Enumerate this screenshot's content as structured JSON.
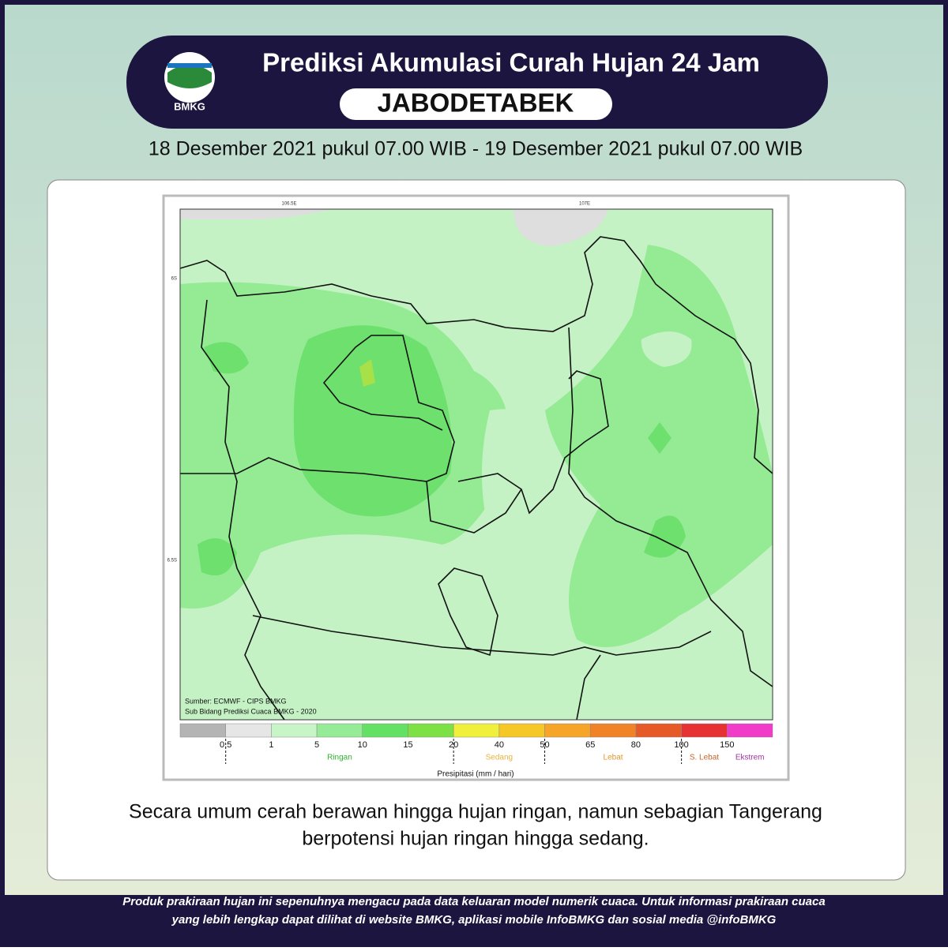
{
  "header": {
    "logo": "BMKG",
    "title": "Prediksi Akumulasi Curah Hujan 24 Jam",
    "region": "JABODETABEK",
    "period": "18 Desember 2021 pukul 07.00 WIB - 19 Desember 2021 pukul 07.00 WIB"
  },
  "map": {
    "lon_labels": [
      "106.5E",
      "107E"
    ],
    "lat_labels": [
      "6S",
      "6.5S"
    ],
    "source": [
      "Sumber: ECMWF - CIPS BMKG",
      "Sub Bidang Prediksi Cuaca BMKG - 2020"
    ],
    "legend": {
      "colors": [
        "#b4b4b4",
        "#e6e6e6",
        "#c8f5c8",
        "#96eb96",
        "#64e164",
        "#7de146",
        "#f0f03c",
        "#f5c828",
        "#f5a528",
        "#f08228",
        "#e65a28",
        "#e63232",
        "#f03cc8"
      ],
      "ticks": [
        "0.5",
        "1",
        "5",
        "10",
        "15",
        "20",
        "40",
        "50",
        "65",
        "80",
        "100",
        "150"
      ],
      "categories": [
        {
          "label": "Ringan",
          "color": "#2db42d"
        },
        {
          "label": "Sedang",
          "color": "#e6b43c"
        },
        {
          "label": "Lebat",
          "color": "#e69628"
        },
        {
          "label": "S. Lebat",
          "color": "#c86428"
        },
        {
          "label": "Ekstrem",
          "color": "#a032a0"
        }
      ],
      "axis_label": "Presipitasi (mm / hari)"
    }
  },
  "description": [
    "Secara umum cerah berawan hingga hujan ringan, namun sebagian Tangerang",
    "berpotensi hujan ringan hingga sedang."
  ],
  "footer": [
    "Produk prakiraan hujan ini sepenuhnya mengacu pada data keluaran model numerik cuaca. Untuk informasi prakiraan cuaca",
    "yang lebih lengkap dapat dilihat di website BMKG, aplikasi mobile InfoBMKG dan sosial media @infoBMKG"
  ]
}
